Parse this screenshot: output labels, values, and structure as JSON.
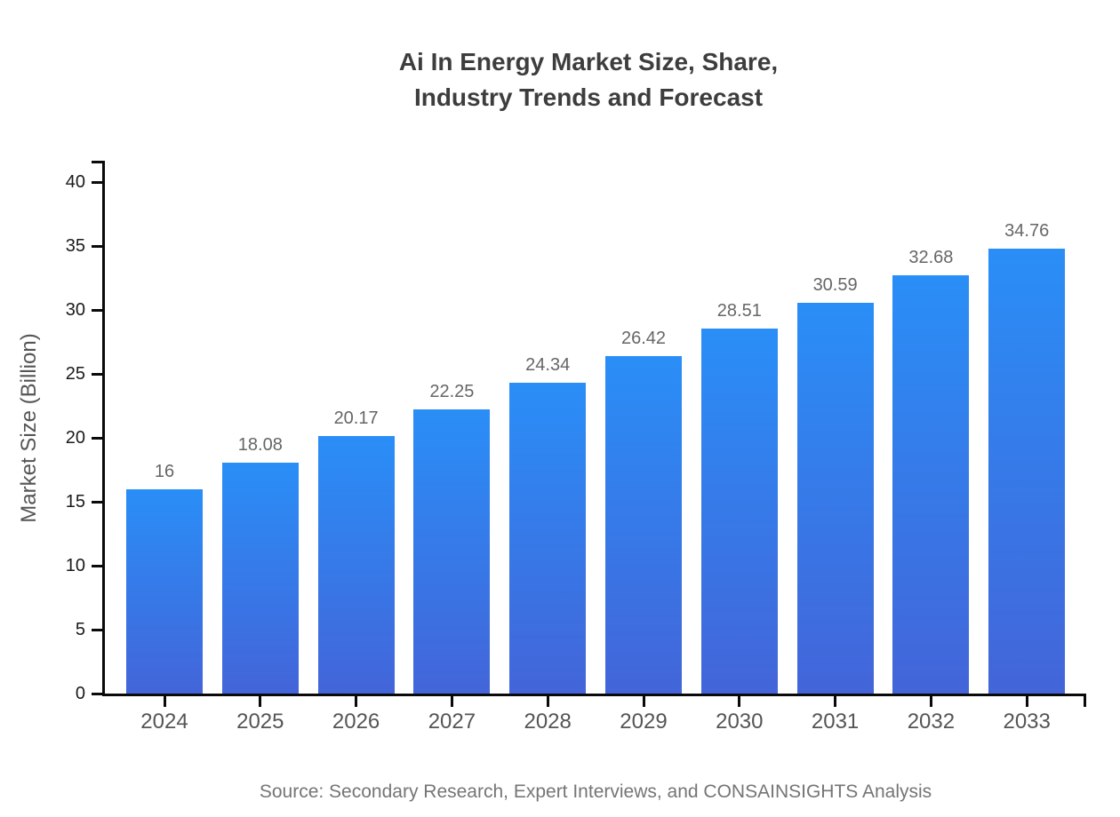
{
  "title": {
    "line1": "Ai In Energy Market Size, Share,",
    "line2": "Industry Trends and Forecast"
  },
  "source": "Source: Secondary Research, Expert Interviews, and CONSAINSIGHTS Analysis",
  "chart_data": {
    "type": "bar",
    "title": "Ai In Energy Market Size, Share, Industry Trends and Forecast",
    "categories": [
      "2024",
      "2025",
      "2026",
      "2027",
      "2028",
      "2029",
      "2030",
      "2031",
      "2032",
      "2033"
    ],
    "values": [
      16,
      18.08,
      20.17,
      22.25,
      24.34,
      26.42,
      28.51,
      30.59,
      32.68,
      34.76
    ],
    "value_labels": [
      "16",
      "18.08",
      "20.17",
      "22.25",
      "24.34",
      "26.42",
      "28.51",
      "30.59",
      "32.68",
      "34.76"
    ],
    "xlabel": "",
    "ylabel": "Market Size (Billion)",
    "ylim": [
      0,
      40
    ],
    "yticks": [
      0,
      5,
      10,
      15,
      20,
      25,
      30,
      35,
      40
    ],
    "grid": false,
    "legend": "none",
    "colors": {
      "bar_gradient_top": "#2a8ef7",
      "bar_gradient_bottom": "#4365d9",
      "axis": "#0a0a0a",
      "value_label": "#666666",
      "x_tick_label": "#555555",
      "y_tick_label": "#1a1a1a",
      "title": "#3d3d3d",
      "source": "#757575"
    }
  }
}
